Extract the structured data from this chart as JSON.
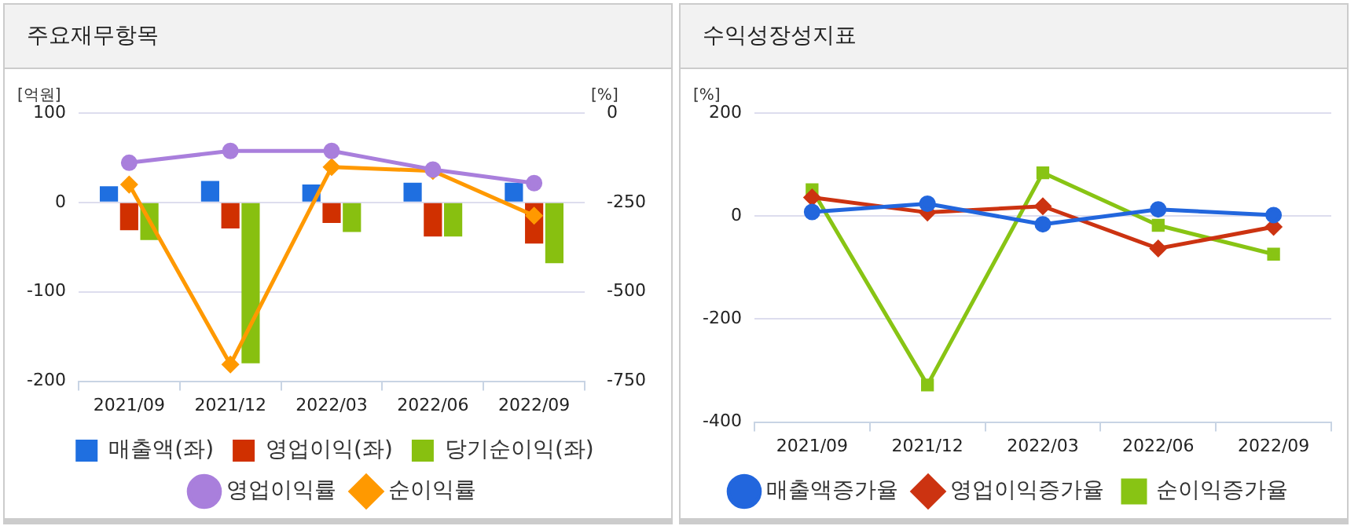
{
  "chart_data": [
    {
      "type": "bar",
      "title": "주요재무항목",
      "ylabel": "[억원]",
      "y2label": "[%]",
      "categories": [
        "2021/09",
        "2021/12",
        "2022/03",
        "2022/06",
        "2022/09"
      ],
      "series": [
        {
          "name": "매출액(좌)",
          "color": "#1f6fe0",
          "values": [
            18,
            24,
            20,
            22,
            22
          ]
        },
        {
          "name": "영업이익(좌)",
          "color": "#d03000",
          "values": [
            -31,
            -29,
            -23,
            -38,
            -46
          ]
        },
        {
          "name": "당기순이익(좌)",
          "color": "#88c010",
          "values": [
            -42,
            -180,
            -33,
            -38,
            -68
          ]
        },
        {
          "name": "영업이익률",
          "type": "line",
          "axis": "y2",
          "marker": "circle",
          "color": "#a97fdc",
          "values": [
            -139,
            -106,
            -106,
            -158,
            -196
          ]
        },
        {
          "name": "순이익률",
          "type": "line",
          "axis": "y2",
          "marker": "diamond",
          "color": "#ff9900",
          "values": [
            -200,
            -703,
            -151,
            -162,
            -287
          ]
        }
      ],
      "ylim": [
        -200,
        100
      ],
      "yticks": [
        100,
        0,
        -100,
        -200
      ],
      "y2lim": [
        -750,
        0
      ],
      "y2ticks": [
        0,
        -250,
        -500,
        -750
      ],
      "grid": "y",
      "legend": "bottom"
    },
    {
      "type": "line",
      "title": "수익성장성지표",
      "ylabel": "[%]",
      "categories": [
        "2021/09",
        "2021/12",
        "2022/03",
        "2022/06",
        "2022/09"
      ],
      "series": [
        {
          "name": "매출액증가율",
          "marker": "circle",
          "color": "#2266dd",
          "values": [
            8,
            24,
            -16,
            13,
            2
          ]
        },
        {
          "name": "영업이익증가율",
          "marker": "diamond",
          "color": "#cc3311",
          "values": [
            36,
            7,
            19,
            -63,
            -21
          ]
        },
        {
          "name": "순이익증가율",
          "marker": "square",
          "color": "#88c414",
          "values": [
            51,
            -328,
            84,
            -18,
            -74
          ]
        }
      ],
      "ylim": [
        -400,
        200
      ],
      "yticks": [
        200,
        0,
        -200,
        -400
      ],
      "grid": "y",
      "legend": "bottom"
    }
  ]
}
